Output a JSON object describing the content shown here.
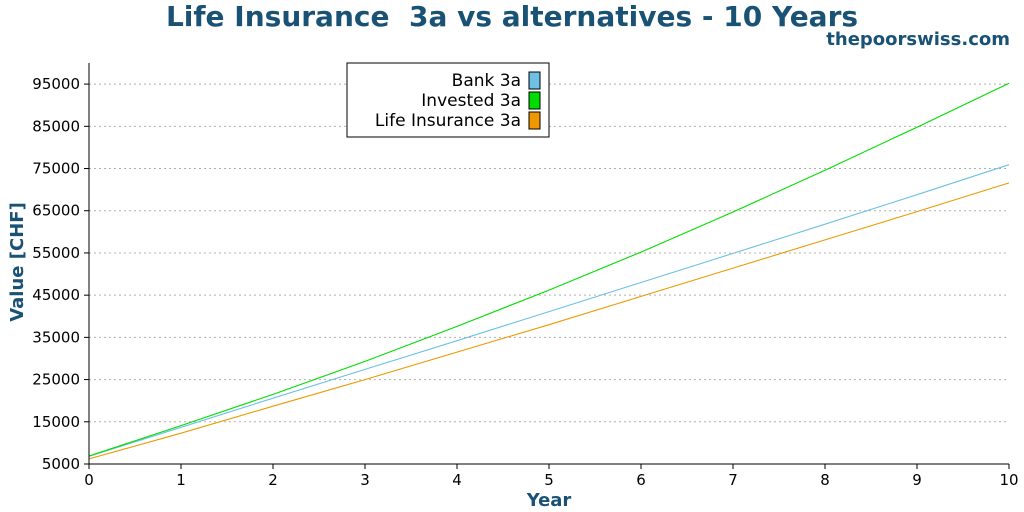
{
  "header": {
    "title": "Life Insurance  3a vs alternatives - 10 Years",
    "credit": "thepoorswiss.com"
  },
  "chart_data": {
    "type": "line",
    "title": "Life Insurance  3a vs alternatives - 10 Years",
    "xlabel": "Year",
    "ylabel": "Value [CHF]",
    "xlim": [
      0,
      10
    ],
    "ylim": [
      5000,
      100000
    ],
    "x": [
      0,
      1,
      2,
      3,
      4,
      5,
      6,
      7,
      8,
      9,
      10
    ],
    "x_ticks": [
      0,
      1,
      2,
      3,
      4,
      5,
      6,
      7,
      8,
      9,
      10
    ],
    "y_ticks": [
      5000,
      15000,
      25000,
      35000,
      45000,
      55000,
      65000,
      75000,
      85000,
      95000
    ],
    "grid": "horizontal dotted",
    "legend_placement": "top-center",
    "series": [
      {
        "name": "Bank 3a",
        "color": "#6ec1e4",
        "values": [
          6800,
          13700,
          20600,
          27400,
          34200,
          41100,
          48000,
          54900,
          61800,
          68800,
          75900
        ]
      },
      {
        "name": "Invested 3a",
        "color": "#00dd00",
        "values": [
          6900,
          14100,
          21500,
          29300,
          37600,
          46200,
          55200,
          64700,
          74600,
          84800,
          95200
        ]
      },
      {
        "name": "Life Insurance 3a",
        "color": "#ee9900",
        "values": [
          6200,
          12300,
          18700,
          25000,
          31500,
          38000,
          44700,
          51400,
          58100,
          64800,
          71600
        ]
      }
    ]
  }
}
